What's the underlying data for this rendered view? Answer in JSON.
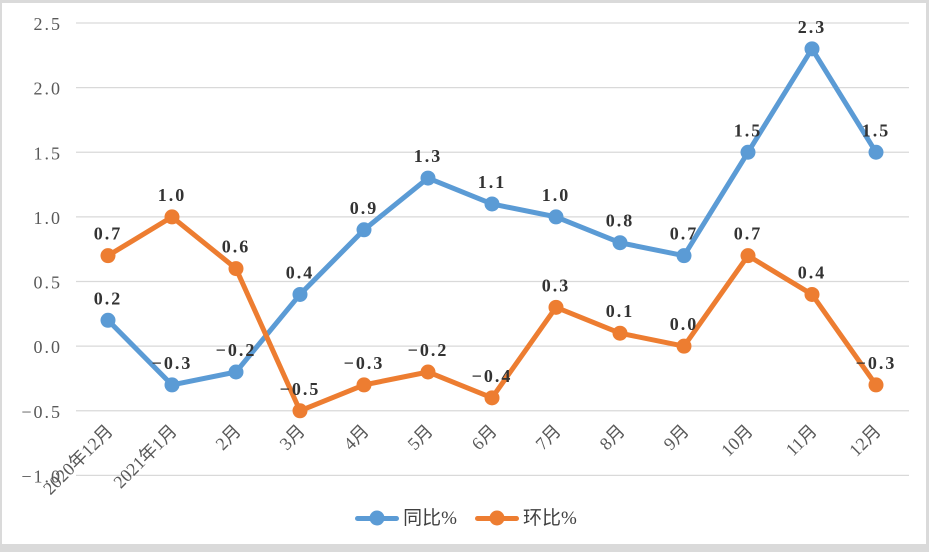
{
  "chart_data": {
    "type": "line",
    "title": "",
    "categories": [
      "2020年12月",
      "2021年1月",
      "2月",
      "3月",
      "4月",
      "5月",
      "6月",
      "7月",
      "8月",
      "9月",
      "10月",
      "11月",
      "12月"
    ],
    "series": [
      {
        "name": "同比%",
        "color": "#5B9BD5",
        "values": [
          0.2,
          -0.3,
          -0.2,
          0.4,
          0.9,
          1.3,
          1.1,
          1.0,
          0.8,
          0.7,
          1.5,
          2.3,
          1.5
        ]
      },
      {
        "name": "环比%",
        "color": "#ED7D31",
        "values": [
          0.7,
          1.0,
          0.6,
          -0.5,
          -0.3,
          -0.2,
          -0.4,
          0.3,
          0.1,
          0.0,
          0.7,
          0.4,
          -0.3
        ]
      }
    ],
    "y_ticks": [
      2.5,
      2.0,
      1.5,
      1.0,
      0.5,
      0.0,
      -0.5,
      -1.0
    ],
    "ylim": [
      -1.0,
      2.5
    ],
    "xlabel": "",
    "ylabel": "",
    "grid": true,
    "data_labels": true,
    "data_label_format": "0.0",
    "legend_position": "bottom",
    "legend_entries": [
      "同比%",
      "环比%"
    ],
    "x_label_rotation_deg": 45,
    "colors": {
      "series_blue": "#5B9BD5",
      "series_orange": "#ED7D31",
      "gridline": "#D9D9D9",
      "axis_text": "#595959",
      "data_label_text": "#333333",
      "legend_text": "#404040",
      "frame_border": "#DADADA",
      "background": "#FFFFFF"
    }
  }
}
